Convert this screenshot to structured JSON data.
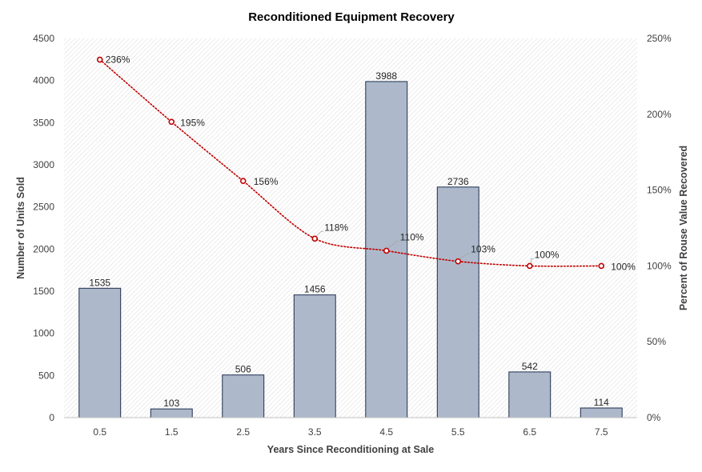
{
  "chart_data": {
    "type": "bar",
    "title": "Reconditioned Equipment Recovery",
    "xlabel": "Years Since Reconditioning at Sale",
    "ylabel": "Number of Units Sold",
    "y2label": "Percent of Rouse Value Recovered",
    "categories": [
      "0.5",
      "1.5",
      "2.5",
      "3.5",
      "4.5",
      "5.5",
      "6.5",
      "7.5"
    ],
    "ylim": [
      0,
      4500
    ],
    "y_ticks": [
      "0",
      "500",
      "1000",
      "1500",
      "2000",
      "2500",
      "3000",
      "3500",
      "4000",
      "4500"
    ],
    "y2lim": [
      0,
      250
    ],
    "y2_ticks": [
      "0%",
      "50%",
      "100%",
      "150%",
      "200%",
      "250%"
    ],
    "grid": false,
    "legend": "none",
    "series": [
      {
        "kind": "bar",
        "axis": "left",
        "values": [
          1535,
          103,
          506,
          1456,
          3988,
          2736,
          542,
          114
        ],
        "labels": [
          "1535",
          "103",
          "506",
          "1456",
          "3988",
          "2736",
          "542",
          "114"
        ],
        "color": "#adb9ca",
        "edge_color": "#1f2e4f"
      },
      {
        "kind": "line",
        "axis": "right",
        "values": [
          236,
          195,
          156,
          118,
          110,
          103,
          100,
          100
        ],
        "labels": [
          "236%",
          "195%",
          "156%",
          "118%",
          "110%",
          "103%",
          "100%",
          "100%"
        ],
        "color": "#c00000",
        "style": "dotted"
      }
    ]
  }
}
